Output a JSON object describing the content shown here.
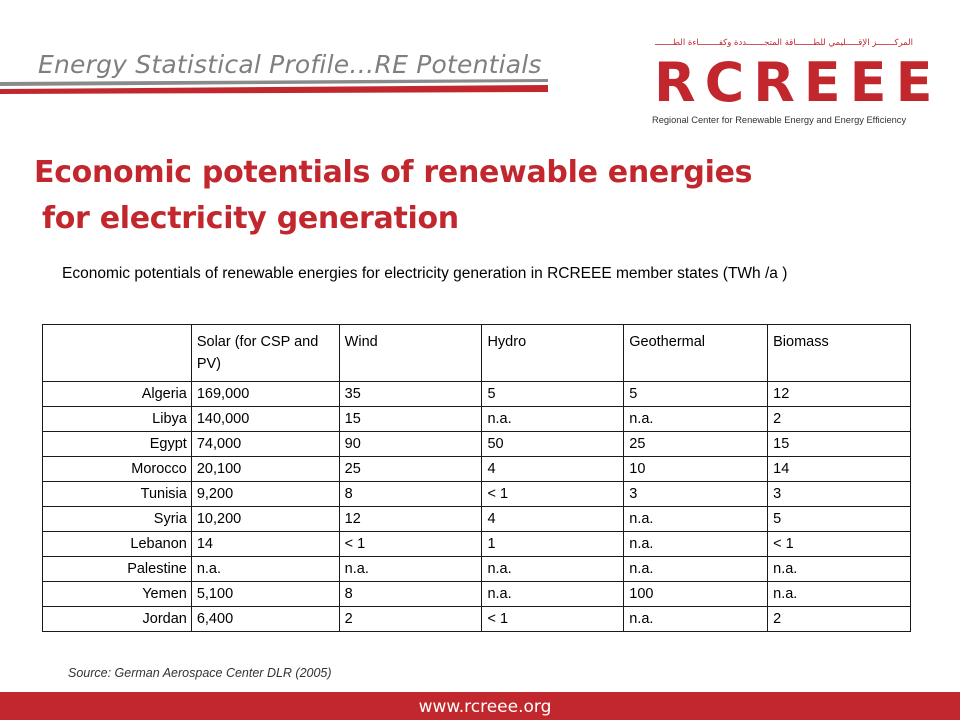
{
  "header": {
    "title": "Energy Statistical Profile…RE Potentials"
  },
  "logo": {
    "arabic_text": "المركـــــــز الإقـــــليمي للطـــــــاقة المتجـــــــددة وكفــــــــاءة الطــــــــاقة",
    "mark": "RCREEE",
    "subtitle": "Regional Center for Renewable Energy and Energy Efficiency"
  },
  "main_title": {
    "line1": "Economic  potentials of  renewable  energies",
    "line2": "for  electricity generation"
  },
  "caption": "Economic  potentials  of  renewable  energies  for  electricity generation in  RCREEE member states (TWh /a )",
  "table": {
    "headers": [
      "",
      "Solar (for CSP and PV)",
      "Wind",
      "Hydro",
      "Geothermal",
      "Biomass"
    ],
    "rows": [
      [
        "Algeria",
        "169,000",
        "35",
        "5",
        "5",
        "12"
      ],
      [
        "Libya",
        "140,000",
        "15",
        "n.a.",
        "n.a.",
        "2"
      ],
      [
        "Egypt",
        "74,000",
        "90",
        "50",
        "25",
        "15"
      ],
      [
        "Morocco",
        "20,100",
        "25",
        "4",
        "10",
        "14"
      ],
      [
        "Tunisia",
        "9,200",
        "8",
        "< 1",
        "3",
        "3"
      ],
      [
        "Syria",
        "10,200",
        "12",
        "4",
        "n.a.",
        "5"
      ],
      [
        "Lebanon",
        "14",
        "< 1",
        "1",
        "n.a.",
        "< 1"
      ],
      [
        "Palestine",
        "n.a.",
        "n.a.",
        "n.a.",
        "n.a.",
        "n.a."
      ],
      [
        "Yemen",
        "5,100",
        "8",
        "n.a.",
        "100",
        "n.a."
      ],
      [
        "Jordan",
        "6,400",
        "2",
        "< 1",
        "n.a.",
        "2"
      ]
    ]
  },
  "source": "Source: German Aerospace Center DLR (2005)",
  "footer": {
    "url": "www.rcreee.org"
  },
  "colors": {
    "accent": "#c1272d",
    "header_gray": "#7f7f7f"
  }
}
